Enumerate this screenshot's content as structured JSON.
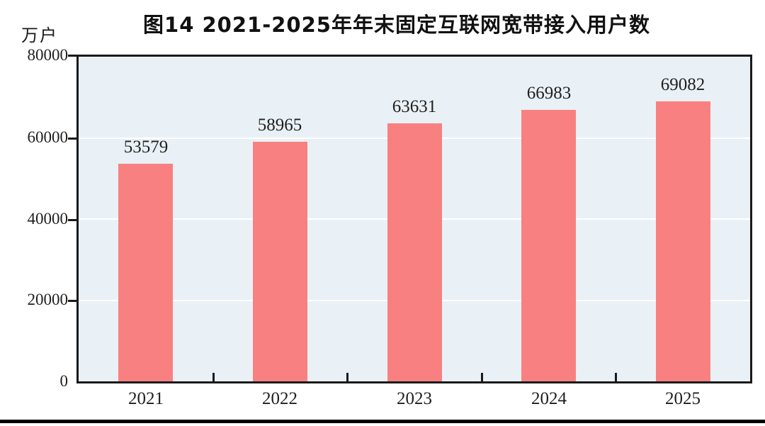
{
  "chart_data": {
    "type": "bar",
    "title": "图14  2021-2025年年末固定互联网宽带接入用户数",
    "unit_label": "万户",
    "categories": [
      "2021",
      "2022",
      "2023",
      "2024",
      "2025"
    ],
    "values": [
      53579,
      58965,
      63631,
      66983,
      69082
    ],
    "series_name": "年末固定互联网宽带接入用户数",
    "xlabel": "",
    "ylabel": "万户",
    "ylim": [
      0,
      80000
    ],
    "yticks": [
      0,
      20000,
      40000,
      60000,
      80000
    ],
    "grid": true,
    "legend_position": "none",
    "colors": {
      "bar": "#f98080",
      "plot_background": "#eaf1f6",
      "gridline": "#ffffff",
      "axis_border": "#1a1a1a",
      "text": "#1f1f1f",
      "page_background": "#ffffff"
    }
  }
}
